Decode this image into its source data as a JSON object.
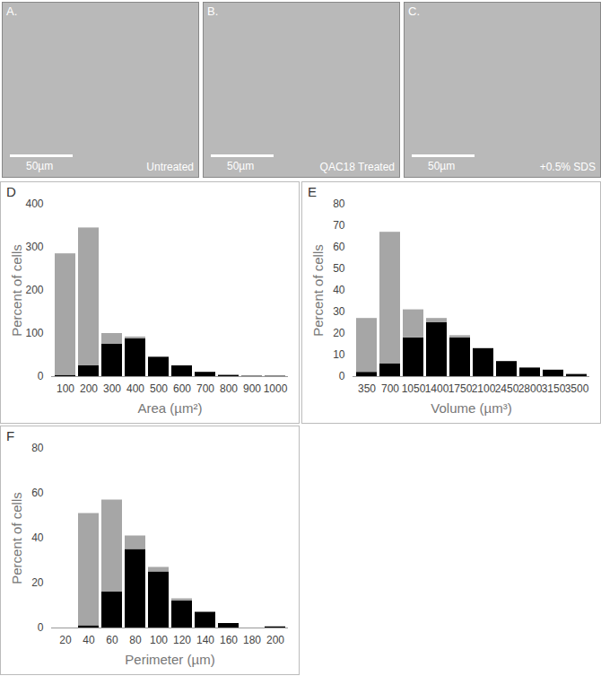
{
  "images": [
    {
      "label": "A.",
      "condition": "Untreated",
      "scale_bar": "50µm"
    },
    {
      "label": "B.",
      "condition": "QAC18 Treated",
      "scale_bar": "50µm"
    },
    {
      "label": "C.",
      "condition": "+0.5% SDS",
      "scale_bar": "50µm"
    }
  ],
  "chart_data": [
    {
      "type": "bar",
      "title": "D",
      "stacked": true,
      "x_label": "Area (µm²)",
      "y_label": "Percent of cells",
      "categories": [
        "100",
        "200",
        "300",
        "400",
        "500",
        "600",
        "700",
        "800",
        "900",
        "1000"
      ],
      "series": [
        {
          "color": "#000000",
          "values": [
            3,
            25,
            75,
            88,
            45,
            25,
            10,
            3,
            1,
            1
          ]
        },
        {
          "color": "#a6a6a6",
          "values": [
            282,
            320,
            25,
            4,
            0,
            0,
            0,
            0,
            0,
            0
          ]
        }
      ],
      "ylim": [
        0,
        400
      ],
      "yticks": [
        0,
        100,
        200,
        300,
        400
      ]
    },
    {
      "type": "bar",
      "title": "E",
      "stacked": true,
      "x_label": "Volume (µm³)",
      "y_label": "Percent of cells",
      "categories": [
        "350",
        "700",
        "1050",
        "1400",
        "1750",
        "2100",
        "2450",
        "2800",
        "3150",
        "3500"
      ],
      "series": [
        {
          "color": "#000000",
          "values": [
            2,
            6,
            18,
            25,
            18,
            13,
            7,
            4,
            3,
            1
          ]
        },
        {
          "color": "#a6a6a6",
          "values": [
            25,
            61,
            13,
            2,
            1,
            0,
            0,
            0,
            0,
            0
          ]
        }
      ],
      "ylim": [
        0,
        80
      ],
      "yticks": [
        0,
        10,
        20,
        30,
        40,
        50,
        60,
        70,
        80
      ]
    },
    {
      "type": "bar",
      "title": "F",
      "stacked": true,
      "x_label": "Perimeter (µm)",
      "y_label": "Percent of cells",
      "categories": [
        "20",
        "40",
        "60",
        "80",
        "100",
        "120",
        "140",
        "160",
        "180",
        "200"
      ],
      "series": [
        {
          "color": "#000000",
          "values": [
            0,
            1,
            16,
            35,
            25,
            12,
            7,
            2,
            0,
            0.5
          ]
        },
        {
          "color": "#a6a6a6",
          "values": [
            0,
            50,
            41,
            6,
            2,
            1,
            0,
            0,
            0,
            0
          ]
        }
      ],
      "ylim": [
        0,
        80
      ],
      "yticks": [
        0,
        20,
        40,
        60,
        80
      ]
    }
  ]
}
